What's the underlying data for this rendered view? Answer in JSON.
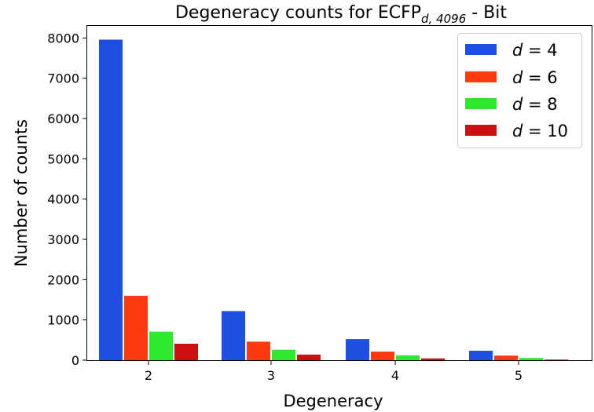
{
  "chart_data": {
    "type": "bar",
    "title": "Degeneracy counts for ECFP",
    "title_subscript": "d, 4096",
    "title_suffix": " - Bit",
    "xlabel": "Degeneracy",
    "ylabel": "Number of counts",
    "categories": [
      "2",
      "3",
      "4",
      "5"
    ],
    "ylim": [
      0,
      8300
    ],
    "yticks": [
      0,
      1000,
      2000,
      3000,
      4000,
      5000,
      6000,
      7000,
      8000
    ],
    "grid": false,
    "legend_position": "top-right",
    "series": [
      {
        "name": "d = 4",
        "d": "d",
        "eq": " = 4",
        "color": "#1f4fe0",
        "values": [
          7960,
          1220,
          525,
          235
        ]
      },
      {
        "name": "d = 6",
        "d": "d",
        "eq": " = 6",
        "color": "#ff3a10",
        "values": [
          1600,
          460,
          215,
          115
        ]
      },
      {
        "name": "d = 8",
        "d": "d",
        "eq": " = 8",
        "color": "#2ee82e",
        "values": [
          710,
          260,
          120,
          55
        ]
      },
      {
        "name": "d = 10",
        "d": "d",
        "eq": " = 10",
        "color": "#cc1010",
        "values": [
          410,
          140,
          45,
          15
        ]
      }
    ]
  }
}
